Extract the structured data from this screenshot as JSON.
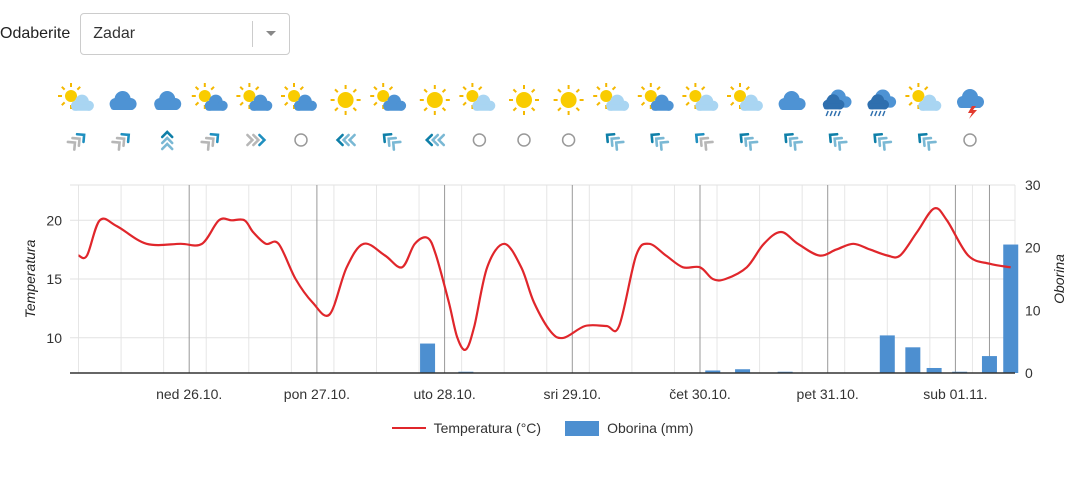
{
  "location": {
    "label": "Odaberite",
    "selected": "Zadar"
  },
  "weather_icons": [
    "partly-sunny-light",
    "cloudy",
    "cloudy",
    "partly-sunny",
    "partly-sunny",
    "partly-sunny",
    "sunny",
    "partly-sunny",
    "sunny",
    "partly-sunny-light",
    "sunny",
    "sunny",
    "partly-sunny-light",
    "partly-sunny",
    "partly-sunny-light",
    "partly-sunny-light",
    "cloudy",
    "rain",
    "rain",
    "partly-sunny-light",
    "thunderstorm"
  ],
  "wind_icons": [
    "wind-ne-light",
    "wind-ne-light",
    "wind-n-strong",
    "wind-ne-light",
    "wind-e-light",
    "calm",
    "wind-w-strong",
    "wind-nw-strong",
    "wind-w-strong",
    "calm",
    "calm",
    "calm",
    "wind-nw-strong",
    "wind-nw-strong",
    "wind-nw-light",
    "wind-nw-strong",
    "wind-nw-strong",
    "wind-nw-strong",
    "wind-nw-strong",
    "wind-nw-strong",
    "calm"
  ],
  "chart_data": {
    "type": "line+bar",
    "x_ticks": [
      "ned 26.10.",
      "pon 27.10.",
      "uto 28.10.",
      "sri 29.10.",
      "čet 30.10.",
      "pet 31.10.",
      "sub 01.11."
    ],
    "y_left": {
      "label": "Temperatura",
      "ticks": [
        10,
        15,
        20
      ],
      "range": [
        7,
        23
      ]
    },
    "y_right": {
      "label": "Oborina",
      "ticks": [
        0,
        10,
        20,
        30
      ],
      "range": [
        0,
        30
      ]
    },
    "grid": true,
    "series": [
      {
        "name": "Temperatura (°C)",
        "type": "line",
        "color": "#e0262b",
        "points": [
          [
            0.0,
            17
          ],
          [
            0.1,
            17
          ],
          [
            0.25,
            20
          ],
          [
            0.45,
            19.5
          ],
          [
            0.8,
            18
          ],
          [
            1.2,
            18
          ],
          [
            1.45,
            18
          ],
          [
            1.65,
            20
          ],
          [
            1.8,
            20
          ],
          [
            1.95,
            20
          ],
          [
            2.05,
            19
          ],
          [
            2.2,
            18
          ],
          [
            2.35,
            18
          ],
          [
            2.55,
            15
          ],
          [
            2.75,
            13
          ],
          [
            2.95,
            12
          ],
          [
            3.15,
            16
          ],
          [
            3.35,
            18
          ],
          [
            3.6,
            17
          ],
          [
            3.8,
            16
          ],
          [
            3.95,
            18
          ],
          [
            4.1,
            18.5
          ],
          [
            4.2,
            17
          ],
          [
            4.35,
            13
          ],
          [
            4.45,
            10
          ],
          [
            4.55,
            9
          ],
          [
            4.65,
            11
          ],
          [
            4.8,
            16
          ],
          [
            5.0,
            18
          ],
          [
            5.2,
            16
          ],
          [
            5.35,
            13
          ],
          [
            5.55,
            10.5
          ],
          [
            5.7,
            10
          ],
          [
            5.95,
            11
          ],
          [
            6.2,
            11
          ],
          [
            6.35,
            11
          ],
          [
            6.55,
            17
          ],
          [
            6.7,
            18
          ],
          [
            6.9,
            17
          ],
          [
            7.1,
            16
          ],
          [
            7.3,
            16
          ],
          [
            7.45,
            15
          ],
          [
            7.6,
            15
          ],
          [
            7.85,
            16
          ],
          [
            8.05,
            18
          ],
          [
            8.25,
            19
          ],
          [
            8.45,
            18
          ],
          [
            8.7,
            17
          ],
          [
            8.9,
            17.5
          ],
          [
            9.1,
            18
          ],
          [
            9.3,
            17.5
          ],
          [
            9.5,
            17
          ],
          [
            9.65,
            17
          ],
          [
            9.85,
            19
          ],
          [
            10.05,
            21
          ],
          [
            10.2,
            20
          ],
          [
            10.45,
            17
          ],
          [
            10.7,
            16.3
          ],
          [
            10.95,
            16
          ]
        ]
      },
      {
        "name": "Oborina (mm)",
        "type": "bar",
        "color": "#4d8fd0",
        "bars": [
          [
            4.1,
            4.7
          ],
          [
            4.55,
            0.2
          ],
          [
            7.45,
            0.4
          ],
          [
            7.8,
            0.6
          ],
          [
            8.3,
            0.2
          ],
          [
            9.5,
            6.0
          ],
          [
            9.8,
            4.1
          ],
          [
            10.05,
            0.8
          ],
          [
            10.35,
            0.2
          ],
          [
            10.7,
            2.7
          ],
          [
            10.95,
            20.5
          ]
        ]
      }
    ]
  }
}
